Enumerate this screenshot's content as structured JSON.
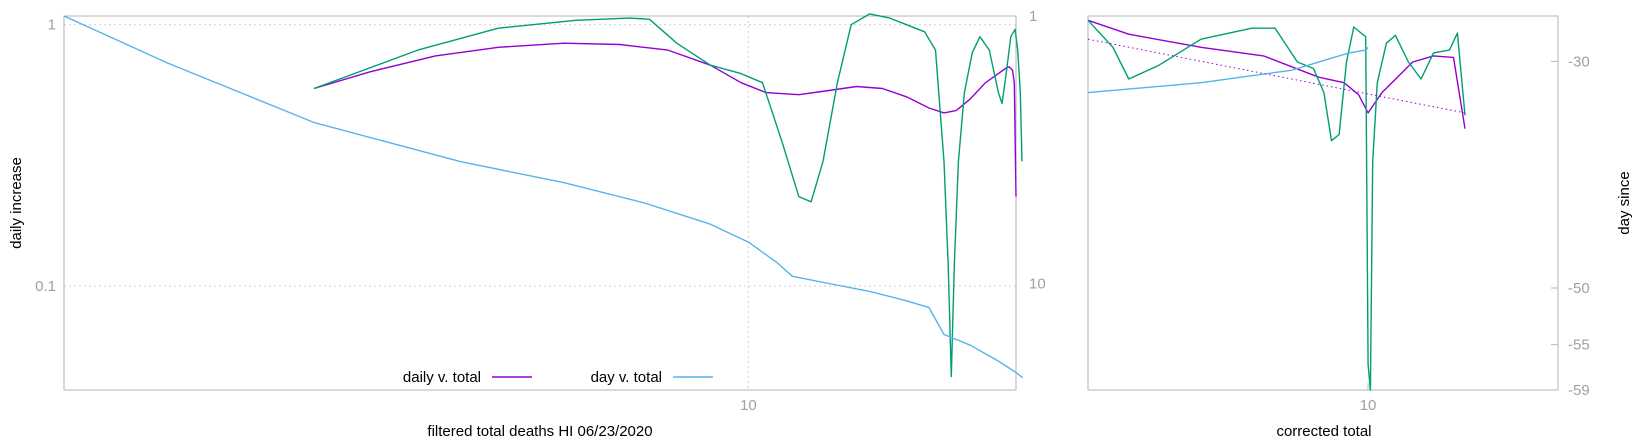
{
  "chart_data": [
    {
      "type": "line",
      "panel": "left",
      "xlabel": "filtered total deaths HI 06/23/2020",
      "ylabel": "daily increase",
      "x_scale": "log",
      "y_scale": "log",
      "xlim": [
        1.5,
        21
      ],
      "ylim": [
        0.04,
        1.08
      ],
      "y2lim": [
        1,
        25
      ],
      "y2_reversed": true,
      "grid": true,
      "legend_position": "bottom-center",
      "x_ticks": [
        {
          "value": 10,
          "label": "10"
        }
      ],
      "y_ticks": [
        {
          "value": 1,
          "label": "1"
        },
        {
          "value": 0.1,
          "label": "0.1"
        }
      ],
      "y2_ticks": [
        {
          "value": 1,
          "label": "1"
        },
        {
          "value": 10,
          "label": "10"
        }
      ],
      "series": [
        {
          "name": "daily v. total",
          "color": "#9400d3",
          "axis": "y",
          "points": [
            [
              3,
              0.57
            ],
            [
              3.5,
              0.66
            ],
            [
              4.2,
              0.76
            ],
            [
              5,
              0.82
            ],
            [
              6,
              0.85
            ],
            [
              7,
              0.84
            ],
            [
              8,
              0.8
            ],
            [
              9,
              0.7
            ],
            [
              9.8,
              0.6
            ],
            [
              10.5,
              0.55
            ],
            [
              11.5,
              0.54
            ],
            [
              12.5,
              0.56
            ],
            [
              13.5,
              0.58
            ],
            [
              14.5,
              0.57
            ],
            [
              15.5,
              0.53
            ],
            [
              16.5,
              0.48
            ],
            [
              17.2,
              0.46
            ],
            [
              17.8,
              0.47
            ],
            [
              18.5,
              0.52
            ],
            [
              19.3,
              0.6
            ],
            [
              20,
              0.65
            ],
            [
              20.4,
              0.68
            ],
            [
              20.6,
              0.69
            ],
            [
              20.8,
              0.67
            ],
            [
              20.9,
              0.6
            ],
            [
              21,
              0.22
            ]
          ]
        },
        {
          "name": "",
          "color": "#009e73",
          "axis": "y",
          "points": [
            [
              3,
              0.57
            ],
            [
              4,
              0.8
            ],
            [
              5,
              0.97
            ],
            [
              6.2,
              1.04
            ],
            [
              7.2,
              1.06
            ],
            [
              7.6,
              1.05
            ],
            [
              8.2,
              0.85
            ],
            [
              9,
              0.7
            ],
            [
              9.8,
              0.65
            ],
            [
              10.4,
              0.6
            ],
            [
              11,
              0.35
            ],
            [
              11.5,
              0.22
            ],
            [
              11.9,
              0.21
            ],
            [
              12.3,
              0.3
            ],
            [
              12.8,
              0.6
            ],
            [
              13.3,
              1
            ],
            [
              14,
              1.1
            ],
            [
              14.8,
              1.06
            ],
            [
              15.5,
              1
            ],
            [
              16.3,
              0.94
            ],
            [
              16.8,
              0.8
            ],
            [
              17.2,
              0.3
            ],
            [
              17.4,
              0.12
            ],
            [
              17.55,
              0.045
            ],
            [
              17.7,
              0.12
            ],
            [
              17.9,
              0.3
            ],
            [
              18.2,
              0.55
            ],
            [
              18.6,
              0.78
            ],
            [
              19,
              0.9
            ],
            [
              19.5,
              0.8
            ],
            [
              20,
              0.55
            ],
            [
              20.2,
              0.5
            ],
            [
              20.4,
              0.62
            ],
            [
              20.7,
              0.9
            ],
            [
              20.95,
              0.96
            ],
            [
              21.1,
              0.8
            ],
            [
              21.25,
              0.55
            ],
            [
              21.35,
              0.3
            ]
          ]
        },
        {
          "name": "day v. total",
          "color": "#56b4e9",
          "axis": "y2",
          "points": [
            [
              1.5,
              1
            ],
            [
              2,
              1.5
            ],
            [
              3,
              2.5
            ],
            [
              4.5,
              3.5
            ],
            [
              6,
              4.2
            ],
            [
              7.5,
              5
            ],
            [
              9,
              6
            ],
            [
              10,
              7
            ],
            [
              10.8,
              8.3
            ],
            [
              11.3,
              9.4
            ],
            [
              12.5,
              10
            ],
            [
              14,
              10.7
            ],
            [
              15.5,
              11.6
            ],
            [
              16.5,
              12.3
            ],
            [
              17.2,
              15.5
            ],
            [
              18.5,
              17
            ],
            [
              20,
              19.5
            ],
            [
              21,
              21.5
            ],
            [
              21.4,
              22.5
            ]
          ]
        }
      ]
    },
    {
      "type": "line",
      "panel": "right",
      "xlabel": "corrected total",
      "ylabel": "day since",
      "x_scale": "log",
      "y_scale": "log",
      "xlim": [
        5.5,
        15
      ],
      "ylim": [
        0.04,
        1.08
      ],
      "y2lim": [
        -26,
        -59
      ],
      "grid": false,
      "x_ticks": [
        {
          "value": 10,
          "label": "10"
        }
      ],
      "y2_ticks": [
        {
          "value": -30,
          "label": "-30"
        },
        {
          "value": -50,
          "label": "-50"
        },
        {
          "value": -55,
          "label": "-55"
        },
        {
          "value": -59,
          "label": "-59"
        }
      ],
      "series": [
        {
          "name": "",
          "color": "#9400d3",
          "axis": "y",
          "points": [
            [
              5.5,
              1.04
            ],
            [
              6,
              0.92
            ],
            [
              7,
              0.82
            ],
            [
              8,
              0.76
            ],
            [
              9,
              0.63
            ],
            [
              9.5,
              0.6
            ],
            [
              9.8,
              0.54
            ],
            [
              10,
              0.46
            ],
            [
              10.3,
              0.55
            ],
            [
              11,
              0.72
            ],
            [
              11.5,
              0.76
            ],
            [
              12,
              0.75
            ],
            [
              12.3,
              0.4
            ]
          ]
        },
        {
          "name": "",
          "color": "#009e73",
          "axis": "y",
          "points": [
            [
              5.5,
              1.04
            ],
            [
              5.8,
              0.82
            ],
            [
              6,
              0.62
            ],
            [
              6.4,
              0.7
            ],
            [
              7,
              0.88
            ],
            [
              7.8,
              0.97
            ],
            [
              8.2,
              0.97
            ],
            [
              8.6,
              0.72
            ],
            [
              8.9,
              0.68
            ],
            [
              9.1,
              0.55
            ],
            [
              9.25,
              0.36
            ],
            [
              9.4,
              0.38
            ],
            [
              9.55,
              0.72
            ],
            [
              9.7,
              0.98
            ],
            [
              9.85,
              0.93
            ],
            [
              9.95,
              0.9
            ],
            [
              10,
              0.05
            ],
            [
              10.05,
              0.04
            ],
            [
              10.1,
              0.3
            ],
            [
              10.2,
              0.6
            ],
            [
              10.4,
              0.85
            ],
            [
              10.6,
              0.91
            ],
            [
              10.9,
              0.72
            ],
            [
              11.2,
              0.62
            ],
            [
              11.5,
              0.78
            ],
            [
              11.9,
              0.8
            ],
            [
              12.1,
              0.93
            ],
            [
              12.3,
              0.45
            ]
          ]
        },
        {
          "name": "",
          "color": "#56b4e9",
          "axis": "y",
          "points": [
            [
              5.5,
              0.55
            ],
            [
              7,
              0.6
            ],
            [
              8.5,
              0.67
            ],
            [
              9.2,
              0.74
            ],
            [
              9.6,
              0.78
            ],
            [
              9.95,
              0.8
            ],
            [
              10,
              0.82
            ]
          ]
        },
        {
          "name": "",
          "color": "#9400d3",
          "dotted": true,
          "axis": "y",
          "points": [
            [
              5.5,
              0.88
            ],
            [
              12.3,
              0.46
            ]
          ]
        }
      ]
    }
  ],
  "legend": [
    {
      "label": "daily v. total",
      "color": "#9400d3"
    },
    {
      "label": "day v. total",
      "color": "#56b4e9"
    }
  ]
}
